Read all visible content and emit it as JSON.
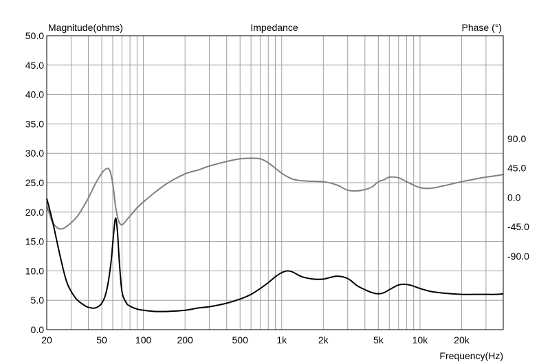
{
  "chart_data": {
    "type": "line",
    "title": "Impedance",
    "ylabel_left": "Magnitude(ohms)",
    "ylabel_right": "Phase (°)",
    "xlabel": "Frequency(Hz)",
    "x_scale": "log",
    "xlim": [
      20,
      40000
    ],
    "ylim_left": [
      0,
      50
    ],
    "ylim_right": [
      -202.5,
      247.5
    ],
    "grid": true,
    "x_ticks": [
      20,
      50,
      100,
      200,
      500,
      1000,
      2000,
      5000,
      10000,
      20000
    ],
    "x_tick_labels": [
      "20",
      "50",
      "100",
      "200",
      "500",
      "1k",
      "2k",
      "5k",
      "10k",
      "20k"
    ],
    "y_left_ticks": [
      "0.0",
      "5.0",
      "10.0",
      "15.0",
      "20.0",
      "25.0",
      "30.0",
      "35.0",
      "40.0",
      "45.0",
      "50.0"
    ],
    "y_right_ticks": [
      "-90.0",
      "-45.0",
      "0.0",
      "45.0",
      "90.0"
    ],
    "series": [
      {
        "axis": "left",
        "color": "#000000",
        "x": [
          20,
          22,
          25,
          28,
          32,
          36,
          40,
          45,
          50,
          54,
          58,
          61,
          63,
          65,
          67,
          70,
          75,
          80,
          90,
          100,
          120,
          150,
          200,
          250,
          300,
          400,
          500,
          600,
          700,
          800,
          900,
          1000,
          1100,
          1200,
          1400,
          1700,
          2000,
          2500,
          3000,
          3500,
          4000,
          4500,
          5000,
          5500,
          6000,
          7000,
          8000,
          9000,
          10000,
          12000,
          15000,
          20000,
          25000,
          30000,
          35000,
          40000
        ],
        "y": [
          22.3,
          18.5,
          12.5,
          8.0,
          5.5,
          4.4,
          3.8,
          3.7,
          4.5,
          6.5,
          11.0,
          16.5,
          19.0,
          16.5,
          11.5,
          6.5,
          4.6,
          4.0,
          3.5,
          3.3,
          3.1,
          3.1,
          3.3,
          3.7,
          3.9,
          4.5,
          5.2,
          6.0,
          7.0,
          8.0,
          9.0,
          9.7,
          10.0,
          9.8,
          9.0,
          8.6,
          8.6,
          9.1,
          8.7,
          7.5,
          6.8,
          6.3,
          6.1,
          6.3,
          6.8,
          7.6,
          7.7,
          7.4,
          7.0,
          6.5,
          6.2,
          6.0,
          6.0,
          6.0,
          6.0,
          6.1
        ]
      },
      {
        "axis": "right",
        "color": "#808080",
        "x": [
          20,
          21,
          22,
          24,
          26,
          28,
          30,
          33,
          36,
          40,
          45,
          50,
          54,
          57,
          59,
          61,
          63,
          66,
          69,
          72,
          76,
          82,
          90,
          100,
          120,
          150,
          200,
          250,
          300,
          400,
          500,
          600,
          700,
          800,
          1000,
          1200,
          1500,
          2000,
          2500,
          3000,
          3500,
          4000,
          4500,
          5000,
          5500,
          6000,
          7000,
          8000,
          10000,
          12000,
          15000,
          20000,
          25000,
          30000,
          35000,
          40000
        ],
        "y": [
          -13,
          -26,
          -38,
          -47,
          -48,
          -44,
          -39,
          -30,
          -18,
          -1,
          21,
          37,
          44,
          42,
          30,
          10,
          -15,
          -35,
          -42,
          -40,
          -34,
          -26,
          -16,
          -7,
          7,
          22,
          36,
          42,
          48,
          55,
          59,
          60,
          59,
          53,
          37,
          28,
          25,
          24,
          19,
          11,
          10,
          12,
          16,
          24,
          27,
          31,
          30,
          24,
          15,
          14,
          18,
          24,
          28,
          31,
          33,
          35
        ]
      }
    ]
  }
}
